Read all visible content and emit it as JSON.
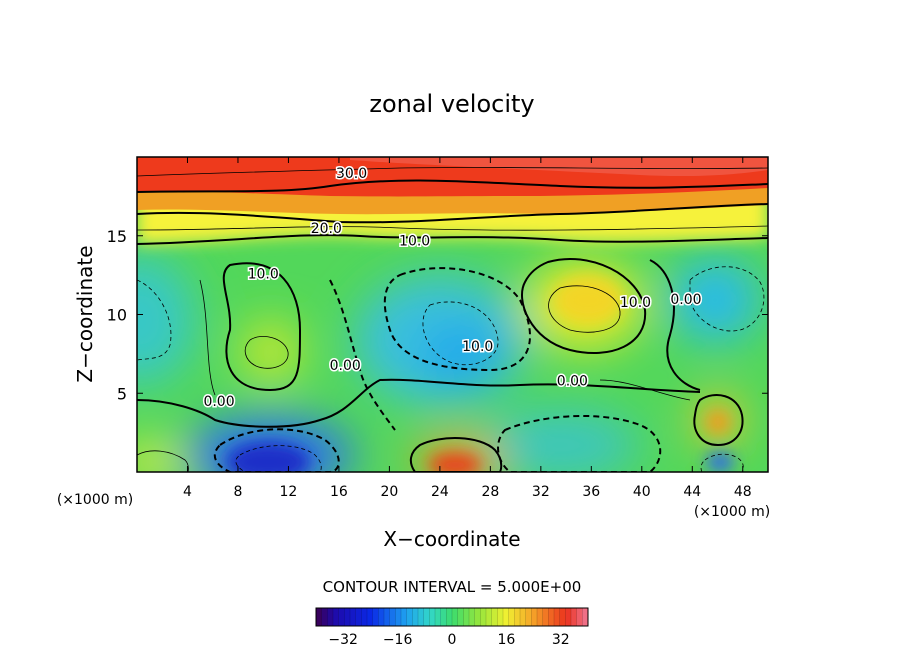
{
  "chart_data": {
    "type": "heatmap",
    "title": "zonal velocity",
    "xlabel": "X−coordinate",
    "ylabel": "Z−coordinate",
    "x_scale_note": "(×1000 m)",
    "y_scale_note": "(×1000 m)",
    "xlim": [
      0,
      50
    ],
    "ylim": [
      0,
      20
    ],
    "x_ticks": [
      4,
      8,
      12,
      16,
      20,
      24,
      28,
      32,
      36,
      40,
      44,
      48
    ],
    "y_ticks": [
      5,
      10,
      15
    ],
    "contour_interval_text": "CONTOUR INTERVAL = 5.000E+00",
    "contour_labels": [
      {
        "text": "30.0",
        "x": 17.0,
        "z": 19.0
      },
      {
        "text": "20.0",
        "x": 15.0,
        "z": 15.5
      },
      {
        "text": "10.0",
        "x": 22.0,
        "z": 14.7
      },
      {
        "text": "10.0",
        "x": 10.0,
        "z": 12.6
      },
      {
        "text": "10.0",
        "x": 27.0,
        "z": 8.0
      },
      {
        "text": "10.0",
        "x": 39.5,
        "z": 10.8
      },
      {
        "text": "0.00",
        "x": 43.5,
        "z": 11.0
      },
      {
        "text": "0.00",
        "x": 16.5,
        "z": 6.8
      },
      {
        "text": "0.00",
        "x": 6.5,
        "z": 4.5
      },
      {
        "text": "0.00",
        "x": 34.5,
        "z": 5.8
      }
    ],
    "field_features": [
      {
        "kind": "jet_layer",
        "z_min": 15,
        "z_max": 20,
        "value": 30
      },
      {
        "kind": "max",
        "x": 35,
        "z": 11,
        "value": 17
      },
      {
        "kind": "max",
        "x": 10.5,
        "z": 7.5,
        "value": 13
      },
      {
        "kind": "max",
        "x": 25.5,
        "z": 0.5,
        "value": 30
      },
      {
        "kind": "max",
        "x": 46,
        "z": 3.2,
        "value": 22
      },
      {
        "kind": "min",
        "x": 11,
        "z": 0.7,
        "value": -33
      },
      {
        "kind": "min",
        "x": 25.5,
        "z": 7.5,
        "value": -13
      },
      {
        "kind": "min",
        "x": 46,
        "z": 11,
        "value": -12
      },
      {
        "kind": "min",
        "x": 46,
        "z": 0.5,
        "value": -20
      },
      {
        "kind": "min",
        "x": 1,
        "z": 10,
        "value": -7
      }
    ],
    "colorbar": {
      "min": -40,
      "max": 40,
      "tick_values": [
        -32,
        -16,
        0,
        16,
        32
      ],
      "tick_labels": [
        "−32",
        "−16",
        "0",
        "16",
        "32"
      ]
    }
  }
}
